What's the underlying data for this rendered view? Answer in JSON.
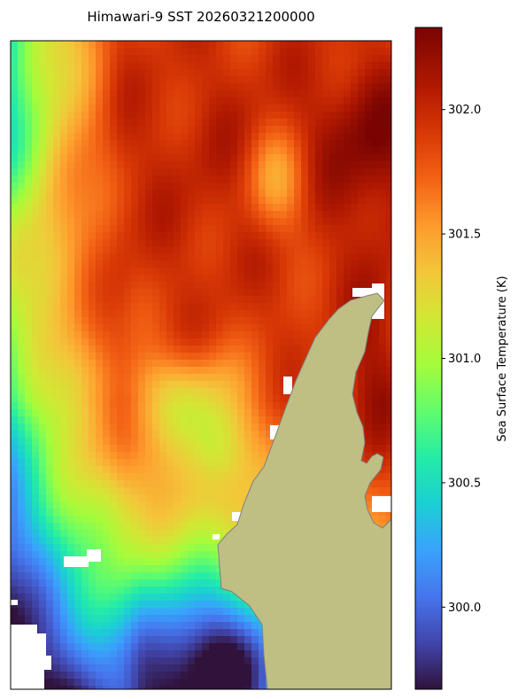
{
  "title": "Himawari-9 SST 20260321200000",
  "colorbar": {
    "label": "Sea Surface Temperature (K)",
    "ticks": [
      "300.0",
      "300.5",
      "301.0",
      "301.5",
      "302.0"
    ],
    "tick_values": [
      300.0,
      300.5,
      301.0,
      301.5,
      302.0
    ],
    "range": [
      299.67,
      302.33
    ],
    "colormap": "turbo"
  },
  "map": {
    "land_color": "#bfbf83",
    "coast_color": "#7f7f7f",
    "missing_color": "#ffffff"
  }
}
